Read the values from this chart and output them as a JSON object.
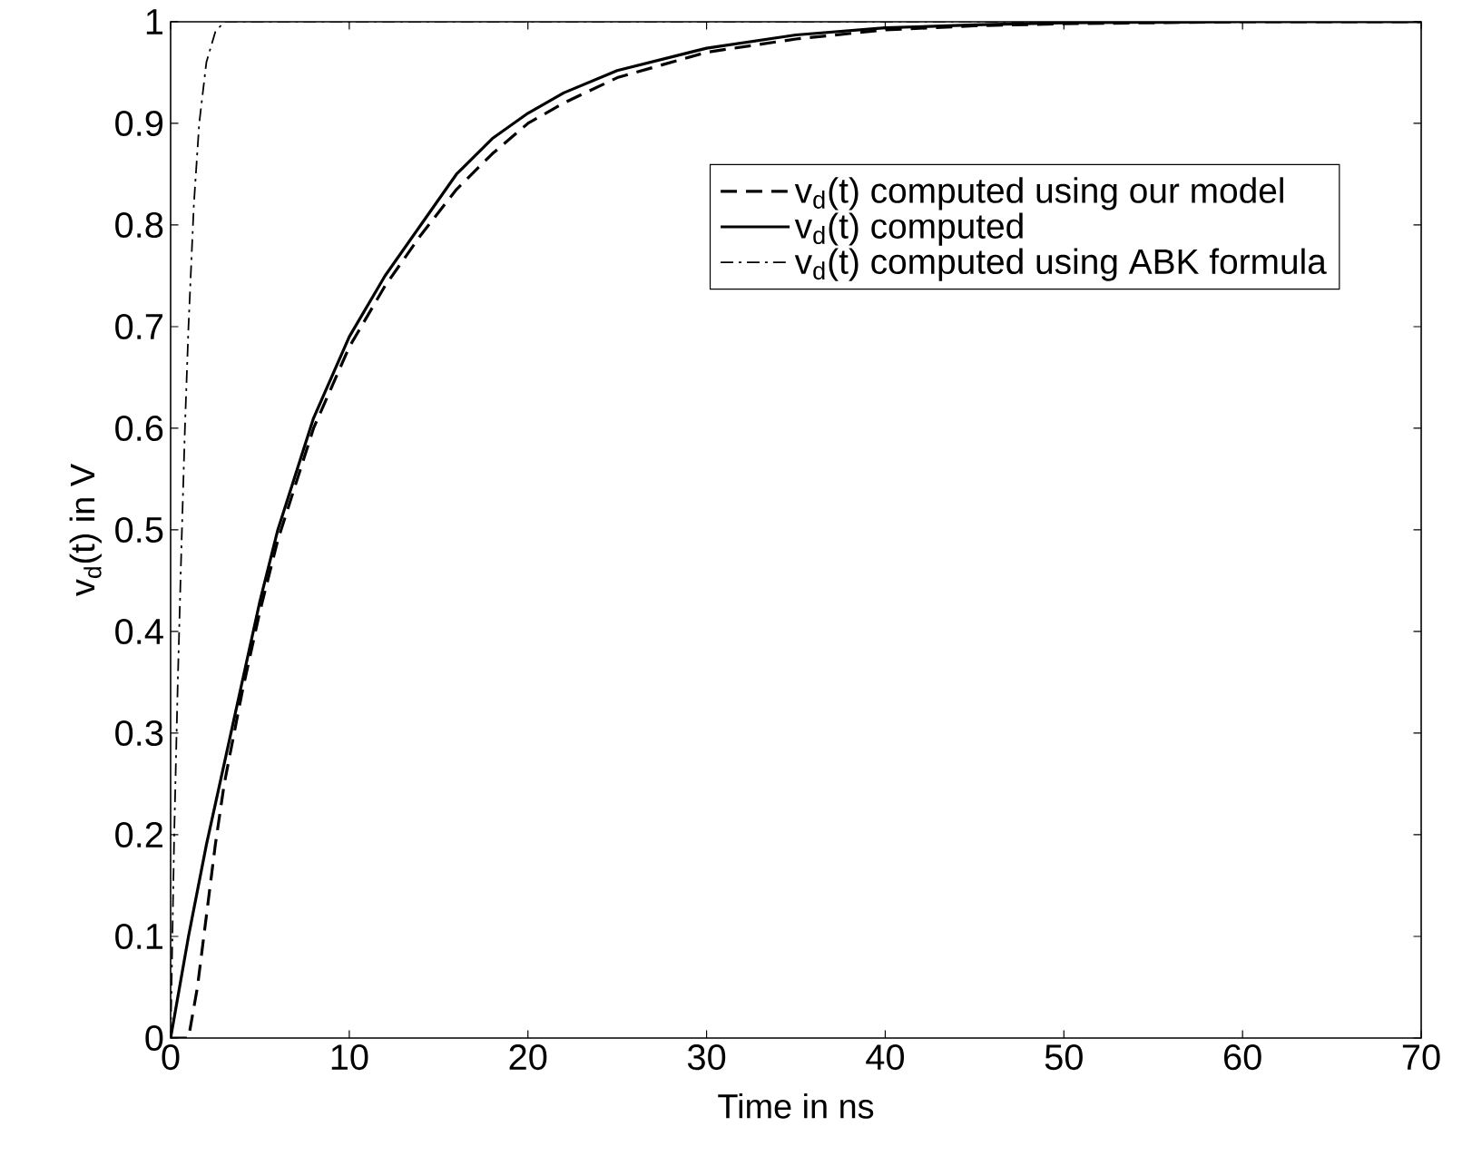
{
  "chart_data": {
    "type": "line",
    "xlabel": "Time in ns",
    "ylabel": "v$_{d}$(t) in V",
    "xlim": [
      0,
      70
    ],
    "ylim": [
      0,
      1
    ],
    "xticks": [
      0,
      10,
      20,
      30,
      40,
      50,
      60,
      70
    ],
    "yticks": [
      0,
      0.1,
      0.2,
      0.3,
      0.4,
      0.5,
      0.6,
      0.7,
      0.8,
      0.9,
      1
    ],
    "legend": "top right",
    "grid": false,
    "series": [
      {
        "name": "v$_{d}$(t) computed using our model",
        "color": "#000000",
        "line_style": "dashed",
        "x": [
          0,
          1,
          1.5,
          2,
          2.5,
          3,
          4,
          5,
          6,
          8,
          10,
          12,
          14,
          16,
          18,
          20,
          22,
          25,
          30,
          35,
          40,
          45,
          50,
          60,
          70
        ],
        "values": [
          0,
          0,
          0.05,
          0.12,
          0.19,
          0.25,
          0.34,
          0.42,
          0.49,
          0.6,
          0.68,
          0.74,
          0.79,
          0.835,
          0.87,
          0.9,
          0.92,
          0.945,
          0.97,
          0.983,
          0.992,
          0.996,
          0.998,
          1,
          1
        ]
      },
      {
        "name": "v$_{d}$(t) computed",
        "color": "#000000",
        "line_style": "solid",
        "x": [
          0,
          1,
          2,
          3,
          4,
          5,
          6,
          8,
          10,
          12,
          14,
          16,
          18,
          20,
          22,
          25,
          30,
          35,
          40,
          45,
          50,
          60,
          70
        ],
        "values": [
          0,
          0.1,
          0.19,
          0.27,
          0.35,
          0.43,
          0.5,
          0.61,
          0.69,
          0.75,
          0.8,
          0.85,
          0.885,
          0.91,
          0.93,
          0.952,
          0.974,
          0.987,
          0.994,
          0.997,
          0.999,
          1,
          1
        ]
      },
      {
        "name": "v$_{d}$(t) computed using ABK formula",
        "color": "#000000",
        "line_style": "dashdot",
        "x": [
          0,
          0.2,
          0.4,
          0.6,
          0.8,
          1,
          1.3,
          1.6,
          2,
          2.5,
          3,
          70
        ],
        "values": [
          0,
          0.2,
          0.35,
          0.48,
          0.6,
          0.7,
          0.82,
          0.9,
          0.96,
          0.99,
          1,
          1
        ]
      }
    ]
  }
}
